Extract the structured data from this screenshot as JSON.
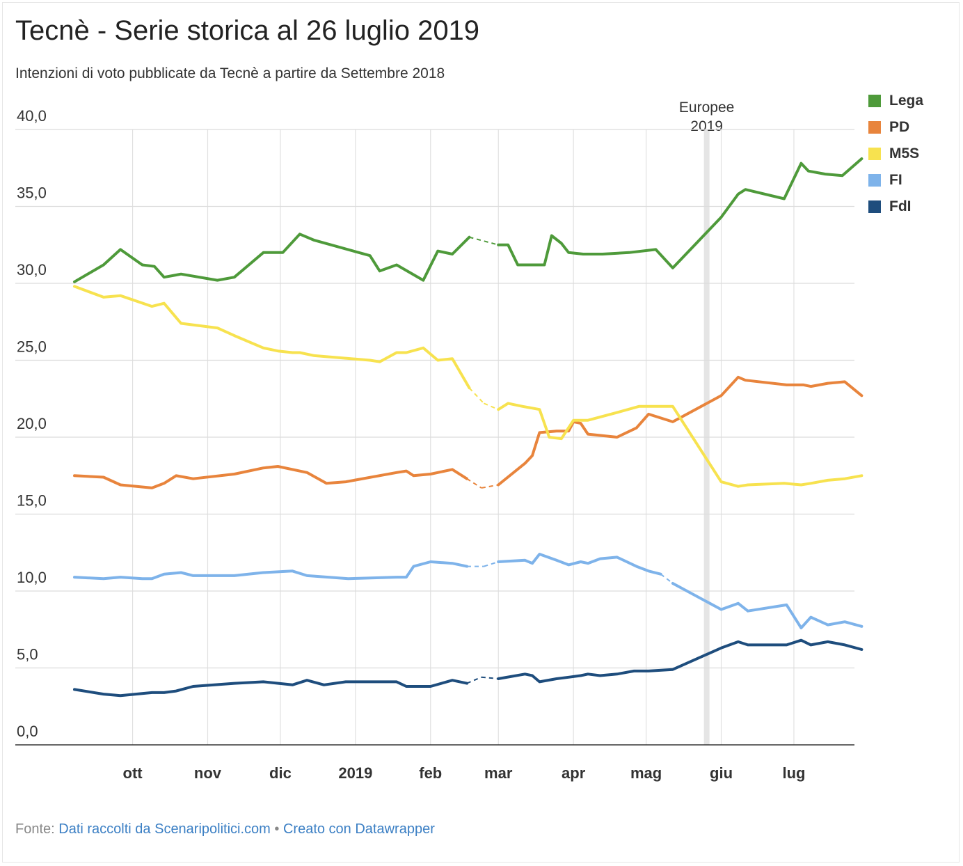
{
  "header": {
    "title": "Tecnè - Serie storica al 26 luglio 2019",
    "subtitle": "Intenzioni di voto pubblicate da Tecnè a partire da Settembre 2018"
  },
  "footer": {
    "prefix": "Fonte:",
    "source_link": "Dati raccolti da Scenaripolitici.com",
    "separator": "•",
    "credit_link": "Creato con Datawrapper"
  },
  "chart_data": {
    "type": "line",
    "title": "Tecnè - Serie storica al 26 luglio 2019",
    "subtitle": "Intenzioni di voto pubblicate da Tecnè a partire da Settembre 2018",
    "xlabel": "",
    "ylabel": "",
    "ylim": [
      0,
      40
    ],
    "xlim": [
      "2018-09-07",
      "2019-07-26"
    ],
    "y_ticks": [
      0,
      5,
      10,
      15,
      20,
      25,
      30,
      35,
      40
    ],
    "y_tick_labels": [
      "0,0",
      "5,0",
      "10,0",
      "15,0",
      "20,0",
      "25,0",
      "30,0",
      "35,0",
      "40,0"
    ],
    "x_ticks": [
      {
        "date": "2018-10-01",
        "label": "ott"
      },
      {
        "date": "2018-11-01",
        "label": "nov"
      },
      {
        "date": "2018-12-01",
        "label": "dic"
      },
      {
        "date": "2019-01-01",
        "label": "2019"
      },
      {
        "date": "2019-02-01",
        "label": "feb"
      },
      {
        "date": "2019-03-01",
        "label": "mar"
      },
      {
        "date": "2019-04-01",
        "label": "apr"
      },
      {
        "date": "2019-05-01",
        "label": "mag"
      },
      {
        "date": "2019-06-01",
        "label": "giu"
      },
      {
        "date": "2019-07-01",
        "label": "lug"
      }
    ],
    "grid": true,
    "legend_position": "right",
    "annotations": [
      {
        "date": "2019-05-26",
        "label_lines": [
          "Europee",
          "2019"
        ]
      }
    ],
    "gaps": [
      {
        "from": "2019-02-17",
        "to": "2019-03-01"
      },
      {
        "from": "2019-05-07",
        "to": "2019-05-27"
      }
    ],
    "series": [
      {
        "name": "Lega",
        "color": "#4e9a3a",
        "points": [
          [
            "2018-09-07",
            30.1
          ],
          [
            "2018-09-19",
            31.2
          ],
          [
            "2018-09-26",
            32.2
          ],
          [
            "2018-10-05",
            31.2
          ],
          [
            "2018-10-10",
            31.1
          ],
          [
            "2018-10-14",
            30.4
          ],
          [
            "2018-10-21",
            30.6
          ],
          [
            "2018-11-05",
            30.2
          ],
          [
            "2018-11-12",
            30.4
          ],
          [
            "2018-11-24",
            32.0
          ],
          [
            "2018-12-02",
            32.0
          ],
          [
            "2018-12-09",
            33.2
          ],
          [
            "2018-12-15",
            32.8
          ],
          [
            "2019-01-07",
            31.8
          ],
          [
            "2019-01-11",
            30.8
          ],
          [
            "2019-01-18",
            31.2
          ],
          [
            "2019-01-29",
            30.2
          ],
          [
            "2019-02-04",
            32.1
          ],
          [
            "2019-02-10",
            31.9
          ],
          [
            "2019-02-17",
            33.0
          ],
          [
            "2019-03-01",
            32.5
          ],
          [
            "2019-03-05",
            32.5
          ],
          [
            "2019-03-09",
            31.2
          ],
          [
            "2019-03-20",
            31.2
          ],
          [
            "2019-03-23",
            33.1
          ],
          [
            "2019-03-27",
            32.6
          ],
          [
            "2019-03-30",
            32.0
          ],
          [
            "2019-04-05",
            31.9
          ],
          [
            "2019-04-13",
            31.9
          ],
          [
            "2019-04-24",
            32.0
          ],
          [
            "2019-05-05",
            32.2
          ],
          [
            "2019-05-12",
            31.0
          ],
          [
            "2019-06-01",
            34.3
          ],
          [
            "2019-06-08",
            35.8
          ],
          [
            "2019-06-11",
            36.1
          ],
          [
            "2019-06-27",
            35.5
          ],
          [
            "2019-07-04",
            37.8
          ],
          [
            "2019-07-07",
            37.3
          ],
          [
            "2019-07-14",
            37.1
          ],
          [
            "2019-07-21",
            37.0
          ],
          [
            "2019-07-29",
            38.1
          ]
        ]
      },
      {
        "name": "PD",
        "color": "#e8843c",
        "points": [
          [
            "2018-09-07",
            17.5
          ],
          [
            "2018-09-19",
            17.4
          ],
          [
            "2018-09-26",
            16.9
          ],
          [
            "2018-10-09",
            16.7
          ],
          [
            "2018-10-14",
            17.0
          ],
          [
            "2018-10-19",
            17.5
          ],
          [
            "2018-10-26",
            17.3
          ],
          [
            "2018-11-12",
            17.6
          ],
          [
            "2018-11-24",
            18.0
          ],
          [
            "2018-11-30",
            18.1
          ],
          [
            "2018-12-12",
            17.7
          ],
          [
            "2018-12-20",
            17.0
          ],
          [
            "2018-12-28",
            17.1
          ],
          [
            "2019-01-18",
            17.7
          ],
          [
            "2019-01-22",
            17.8
          ],
          [
            "2019-01-25",
            17.5
          ],
          [
            "2019-02-01",
            17.6
          ],
          [
            "2019-02-10",
            17.9
          ],
          [
            "2019-02-16",
            17.3
          ],
          [
            "2019-02-22",
            16.7
          ],
          [
            "2019-03-01",
            16.9
          ],
          [
            "2019-03-12",
            18.3
          ],
          [
            "2019-03-15",
            18.8
          ],
          [
            "2019-03-18",
            20.3
          ],
          [
            "2019-03-25",
            20.4
          ],
          [
            "2019-03-30",
            20.4
          ],
          [
            "2019-04-01",
            21.0
          ],
          [
            "2019-04-04",
            20.9
          ],
          [
            "2019-04-07",
            20.2
          ],
          [
            "2019-04-19",
            20.0
          ],
          [
            "2019-04-27",
            20.6
          ],
          [
            "2019-05-02",
            21.5
          ],
          [
            "2019-05-12",
            21.0
          ],
          [
            "2019-06-01",
            22.7
          ],
          [
            "2019-06-08",
            23.9
          ],
          [
            "2019-06-11",
            23.7
          ],
          [
            "2019-06-28",
            23.4
          ],
          [
            "2019-07-05",
            23.4
          ],
          [
            "2019-07-08",
            23.3
          ],
          [
            "2019-07-15",
            23.5
          ],
          [
            "2019-07-22",
            23.6
          ],
          [
            "2019-07-29",
            22.7
          ]
        ]
      },
      {
        "name": "M5S",
        "color": "#f7e24f",
        "points": [
          [
            "2018-09-07",
            29.8
          ],
          [
            "2018-09-19",
            29.1
          ],
          [
            "2018-09-26",
            29.2
          ],
          [
            "2018-10-09",
            28.5
          ],
          [
            "2018-10-14",
            28.7
          ],
          [
            "2018-10-21",
            27.4
          ],
          [
            "2018-11-05",
            27.1
          ],
          [
            "2018-11-12",
            26.6
          ],
          [
            "2018-11-24",
            25.8
          ],
          [
            "2018-11-30",
            25.6
          ],
          [
            "2018-12-06",
            25.5
          ],
          [
            "2018-12-09",
            25.5
          ],
          [
            "2018-12-15",
            25.3
          ],
          [
            "2019-01-07",
            25.0
          ],
          [
            "2019-01-11",
            24.9
          ],
          [
            "2019-01-18",
            25.5
          ],
          [
            "2019-01-22",
            25.5
          ],
          [
            "2019-01-29",
            25.8
          ],
          [
            "2019-02-04",
            25.0
          ],
          [
            "2019-02-10",
            25.1
          ],
          [
            "2019-02-17",
            23.2
          ],
          [
            "2019-02-23",
            22.2
          ],
          [
            "2019-03-01",
            21.8
          ],
          [
            "2019-03-05",
            22.2
          ],
          [
            "2019-03-11",
            22.0
          ],
          [
            "2019-03-18",
            21.8
          ],
          [
            "2019-03-22",
            20.0
          ],
          [
            "2019-03-27",
            19.9
          ],
          [
            "2019-04-01",
            21.1
          ],
          [
            "2019-04-07",
            21.1
          ],
          [
            "2019-04-19",
            21.6
          ],
          [
            "2019-04-28",
            22.0
          ],
          [
            "2019-05-12",
            22.0
          ],
          [
            "2019-06-01",
            17.1
          ],
          [
            "2019-06-08",
            16.8
          ],
          [
            "2019-06-12",
            16.9
          ],
          [
            "2019-06-27",
            17.0
          ],
          [
            "2019-07-04",
            16.9
          ],
          [
            "2019-07-08",
            17.0
          ],
          [
            "2019-07-15",
            17.2
          ],
          [
            "2019-07-22",
            17.3
          ],
          [
            "2019-07-29",
            17.5
          ]
        ]
      },
      {
        "name": "FI",
        "color": "#7eb3ea",
        "points": [
          [
            "2018-09-07",
            10.9
          ],
          [
            "2018-09-19",
            10.8
          ],
          [
            "2018-09-26",
            10.9
          ],
          [
            "2018-10-05",
            10.8
          ],
          [
            "2018-10-09",
            10.8
          ],
          [
            "2018-10-14",
            11.1
          ],
          [
            "2018-10-21",
            11.2
          ],
          [
            "2018-10-26",
            11.0
          ],
          [
            "2018-11-12",
            11.0
          ],
          [
            "2018-11-24",
            11.2
          ],
          [
            "2018-12-06",
            11.3
          ],
          [
            "2018-12-12",
            11.0
          ],
          [
            "2018-12-29",
            10.8
          ],
          [
            "2019-01-18",
            10.9
          ],
          [
            "2019-01-22",
            10.9
          ],
          [
            "2019-01-25",
            11.6
          ],
          [
            "2019-02-01",
            11.9
          ],
          [
            "2019-02-10",
            11.8
          ],
          [
            "2019-02-16",
            11.6
          ],
          [
            "2019-02-23",
            11.6
          ],
          [
            "2019-03-01",
            11.9
          ],
          [
            "2019-03-12",
            12.0
          ],
          [
            "2019-03-15",
            11.8
          ],
          [
            "2019-03-18",
            12.4
          ],
          [
            "2019-03-25",
            12.0
          ],
          [
            "2019-03-30",
            11.7
          ],
          [
            "2019-04-04",
            11.9
          ],
          [
            "2019-04-07",
            11.8
          ],
          [
            "2019-04-12",
            12.1
          ],
          [
            "2019-04-19",
            12.2
          ],
          [
            "2019-04-27",
            11.6
          ],
          [
            "2019-05-02",
            11.3
          ],
          [
            "2019-05-07",
            11.1
          ],
          [
            "2019-05-12",
            10.5
          ],
          [
            "2019-06-01",
            8.8
          ],
          [
            "2019-06-08",
            9.2
          ],
          [
            "2019-06-12",
            8.7
          ],
          [
            "2019-06-28",
            9.1
          ],
          [
            "2019-07-04",
            7.6
          ],
          [
            "2019-07-08",
            8.3
          ],
          [
            "2019-07-15",
            7.8
          ],
          [
            "2019-07-22",
            8.0
          ],
          [
            "2019-07-29",
            7.7
          ]
        ]
      },
      {
        "name": "FdI",
        "color": "#1e4d7d",
        "points": [
          [
            "2018-09-07",
            3.6
          ],
          [
            "2018-09-19",
            3.3
          ],
          [
            "2018-09-26",
            3.2
          ],
          [
            "2018-10-09",
            3.4
          ],
          [
            "2018-10-14",
            3.4
          ],
          [
            "2018-10-19",
            3.5
          ],
          [
            "2018-10-26",
            3.8
          ],
          [
            "2018-11-12",
            4.0
          ],
          [
            "2018-11-24",
            4.1
          ],
          [
            "2018-12-06",
            3.9
          ],
          [
            "2018-12-12",
            4.2
          ],
          [
            "2018-12-19",
            3.9
          ],
          [
            "2018-12-28",
            4.1
          ],
          [
            "2019-01-18",
            4.1
          ],
          [
            "2019-01-22",
            3.8
          ],
          [
            "2019-01-25",
            3.8
          ],
          [
            "2019-02-01",
            3.8
          ],
          [
            "2019-02-10",
            4.2
          ],
          [
            "2019-02-16",
            4.0
          ],
          [
            "2019-02-22",
            4.4
          ],
          [
            "2019-03-01",
            4.3
          ],
          [
            "2019-03-12",
            4.6
          ],
          [
            "2019-03-15",
            4.5
          ],
          [
            "2019-03-18",
            4.1
          ],
          [
            "2019-03-25",
            4.3
          ],
          [
            "2019-03-30",
            4.4
          ],
          [
            "2019-04-04",
            4.5
          ],
          [
            "2019-04-07",
            4.6
          ],
          [
            "2019-04-12",
            4.5
          ],
          [
            "2019-04-19",
            4.6
          ],
          [
            "2019-04-26",
            4.8
          ],
          [
            "2019-05-02",
            4.8
          ],
          [
            "2019-05-12",
            4.9
          ],
          [
            "2019-06-01",
            6.3
          ],
          [
            "2019-06-08",
            6.7
          ],
          [
            "2019-06-12",
            6.5
          ],
          [
            "2019-06-28",
            6.5
          ],
          [
            "2019-07-04",
            6.8
          ],
          [
            "2019-07-08",
            6.5
          ],
          [
            "2019-07-15",
            6.7
          ],
          [
            "2019-07-22",
            6.5
          ],
          [
            "2019-07-29",
            6.2
          ]
        ]
      }
    ]
  }
}
